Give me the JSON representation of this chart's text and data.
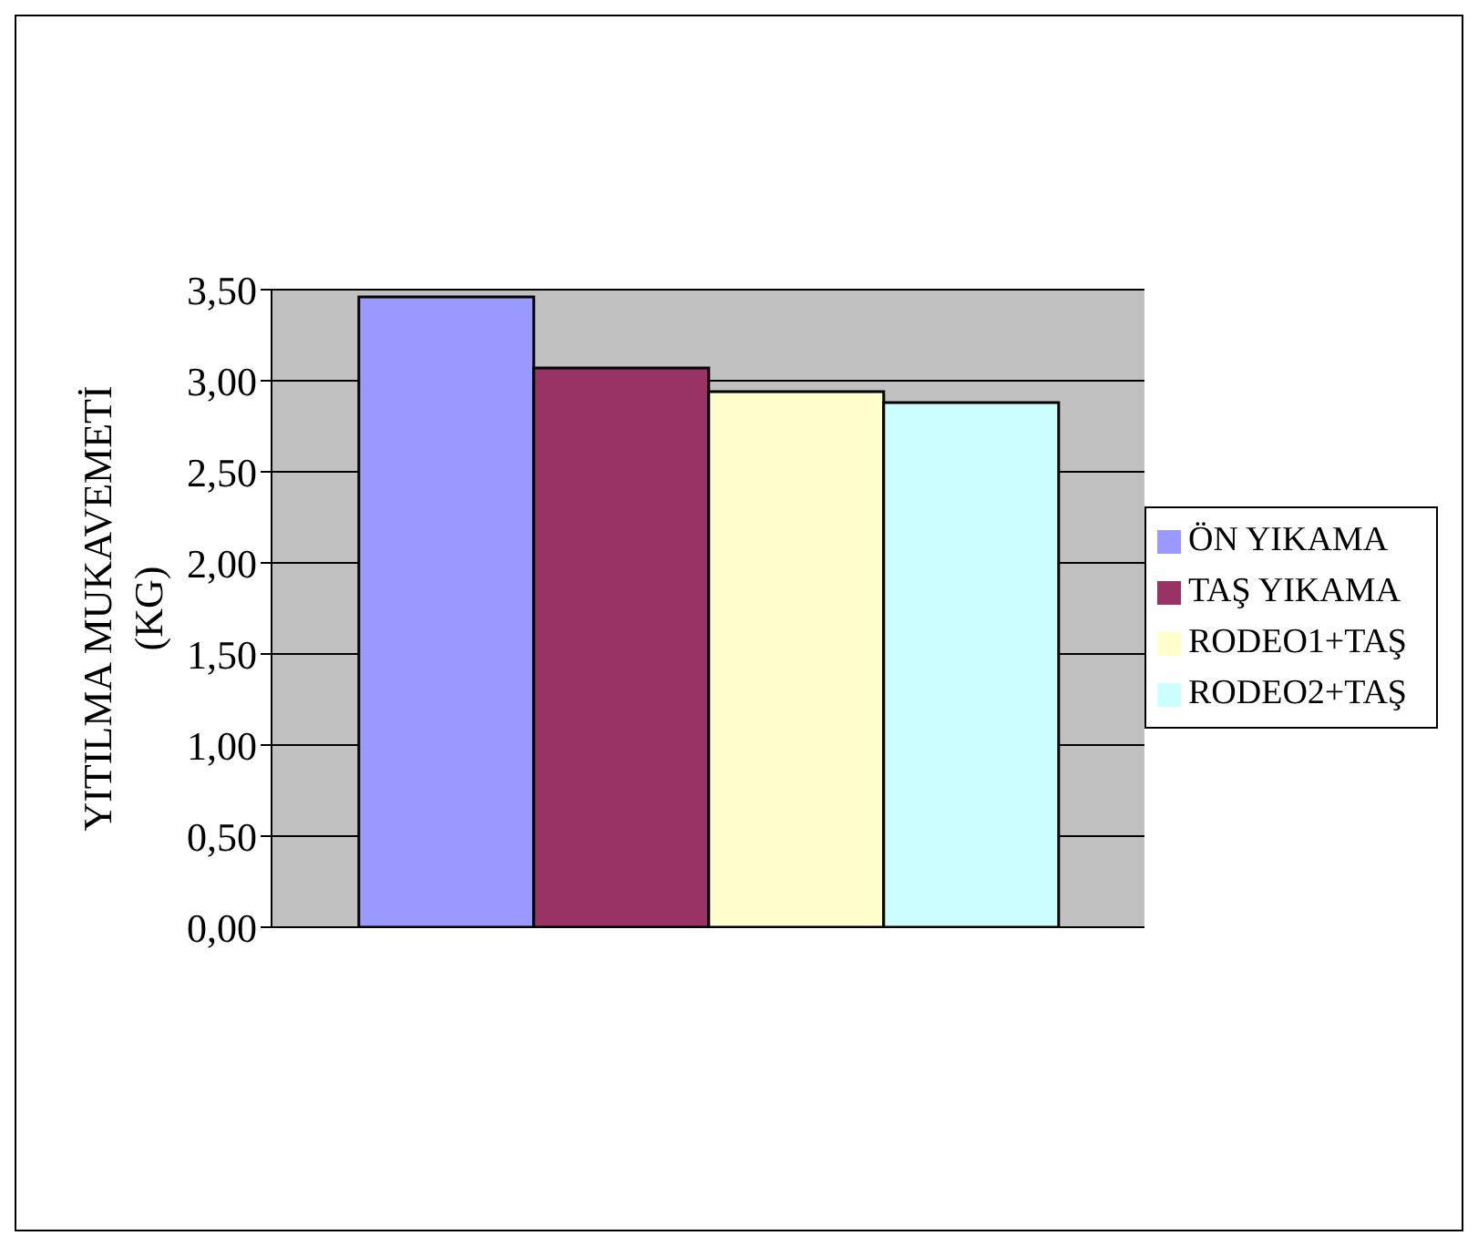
{
  "chart_data": {
    "type": "bar",
    "ylabel": "YITILMA MUKAVEMETİ (KG)",
    "categories": [
      null
    ],
    "series": [
      {
        "name": "ÖN YIKAMA",
        "color": "#9999ff",
        "values": [
          3.46
        ]
      },
      {
        "name": "TAŞ YIKAMA",
        "color": "#993366",
        "values": [
          3.07
        ]
      },
      {
        "name": "RODEO1+TAŞ",
        "color": "#ffffcc",
        "values": [
          2.94
        ]
      },
      {
        "name": "RODEO2+TAŞ",
        "color": "#ccffff",
        "values": [
          2.88
        ]
      }
    ],
    "ylim": [
      0,
      3.5
    ],
    "yticks": [
      {
        "value": 0,
        "label": "0,00"
      },
      {
        "value": 0.5,
        "label": "0,50"
      },
      {
        "value": 1,
        "label": "1,00"
      },
      {
        "value": 1.5,
        "label": "1,50"
      },
      {
        "value": 2,
        "label": "2,00"
      },
      {
        "value": 2.5,
        "label": "2,50"
      },
      {
        "value": 3,
        "label": "3,00"
      },
      {
        "value": 3.5,
        "label": "3,50"
      }
    ],
    "grid": "y",
    "legend": "right"
  }
}
